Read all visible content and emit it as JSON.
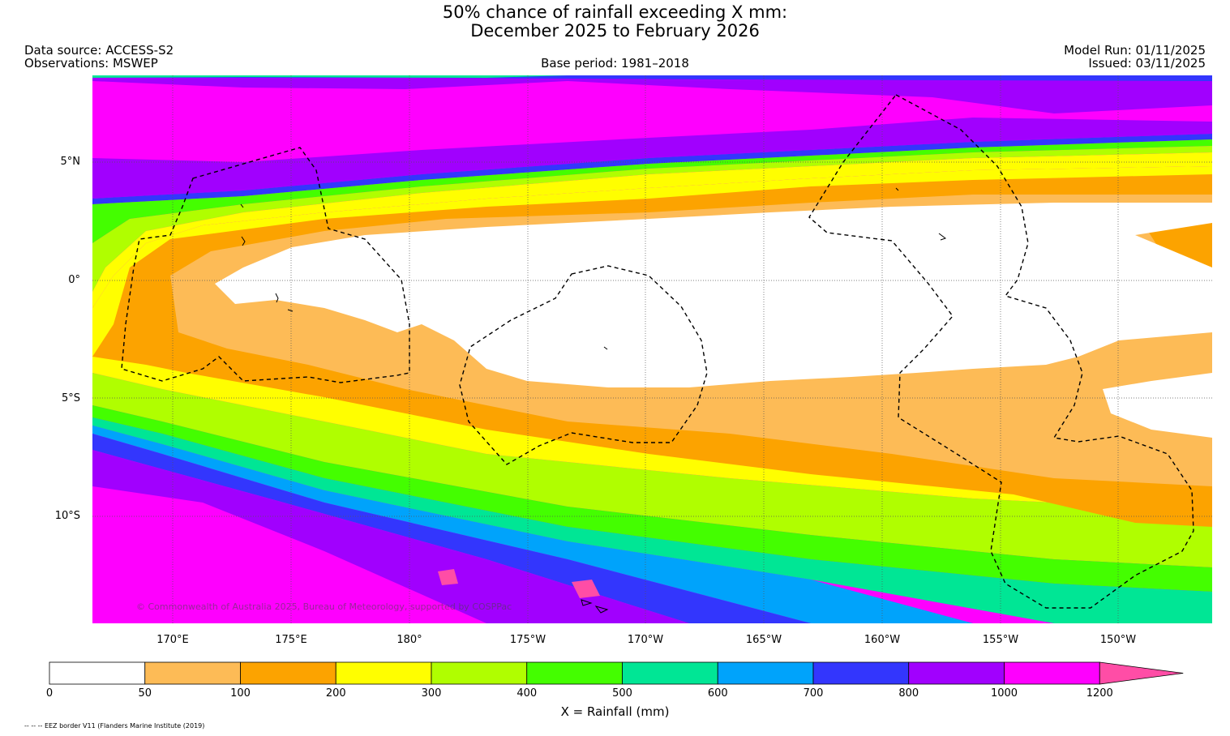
{
  "title_line1": "50% chance of rainfall exceeding X mm:",
  "title_line2": "December 2025 to February 2026",
  "data_source": "Data source: ACCESS-S2",
  "observations": "Observations: MSWEP",
  "base_period": "Base period: 1981–2018",
  "model_run": "Model Run: 01/11/2025",
  "issued": "Issued: 03/11/2025",
  "lat_labels": [
    "5°N",
    "0°",
    "5°S",
    "10°S"
  ],
  "lon_labels": [
    "170°E",
    "175°E",
    "180°",
    "175°W",
    "170°W",
    "165°W",
    "160°W",
    "155°W",
    "150°W"
  ],
  "copyright": "© Commonwealth of Australia 2025, Bureau of Meteorology, supported by COSPPac",
  "colorbar": {
    "ticks": [
      "0",
      "50",
      "100",
      "200",
      "300",
      "400",
      "500",
      "600",
      "700",
      "800",
      "1000",
      "1200"
    ],
    "colors": [
      "#ffffff",
      "#fdbb56",
      "#fca300",
      "#fffe00",
      "#b0fe00",
      "#44fe00",
      "#00e695",
      "#00a3fb",
      "#3336fd",
      "#a100fe",
      "#fe00fe"
    ],
    "extend_color": "#ff4da6",
    "label": "X = Rainfall (mm)"
  },
  "footnote": "-- -- -- EEZ border V11 (Flanders Marine Institute (2019)"
}
